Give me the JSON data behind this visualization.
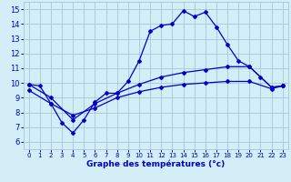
{
  "background_color": "#d4eef8",
  "grid_color": "#aaccdd",
  "line_color": "#0000cc",
  "xlabel": "Graphe des températures (°c)",
  "x_ticks": [
    0,
    1,
    2,
    3,
    4,
    5,
    6,
    7,
    8,
    9,
    10,
    11,
    12,
    13,
    14,
    15,
    16,
    17,
    18,
    19,
    20,
    21,
    22,
    23
  ],
  "y_ticks": [
    6,
    7,
    8,
    9,
    10,
    11,
    12,
    13,
    14,
    15
  ],
  "ylim": [
    5.5,
    15.5
  ],
  "xlim": [
    -0.5,
    23.5
  ],
  "line1_x": [
    0,
    1,
    2,
    3,
    4,
    5,
    6,
    7,
    8,
    9,
    10,
    11,
    12,
    13,
    14,
    15,
    16,
    17,
    18,
    19,
    20,
    21,
    22,
    23
  ],
  "line1_y": [
    9.9,
    9.8,
    8.6,
    7.3,
    6.6,
    7.5,
    8.7,
    9.3,
    9.3,
    10.1,
    11.5,
    13.5,
    13.9,
    14.0,
    14.9,
    14.5,
    14.8,
    13.8,
    12.6,
    11.5,
    11.1,
    10.4,
    9.7,
    9.8
  ],
  "line2_x": [
    0,
    2,
    4,
    6,
    8,
    10,
    12,
    14,
    16,
    18,
    20,
    22,
    23
  ],
  "line2_y": [
    9.9,
    9.0,
    7.5,
    8.6,
    9.3,
    9.9,
    10.4,
    10.7,
    10.9,
    11.1,
    11.1,
    9.7,
    9.8
  ],
  "line3_x": [
    0,
    2,
    4,
    6,
    8,
    10,
    12,
    14,
    16,
    18,
    20,
    22,
    23
  ],
  "line3_y": [
    9.5,
    8.6,
    7.8,
    8.3,
    9.0,
    9.4,
    9.7,
    9.9,
    10.0,
    10.1,
    10.1,
    9.6,
    9.8
  ]
}
